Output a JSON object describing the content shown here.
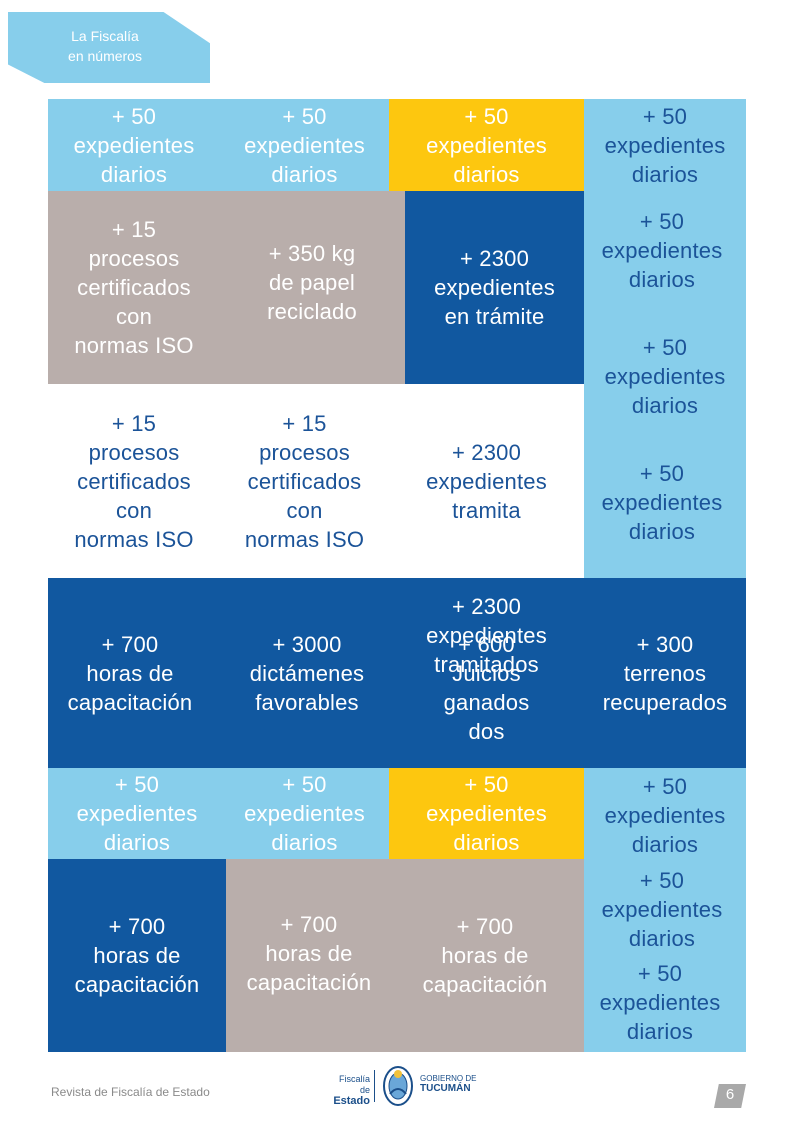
{
  "header": {
    "tag_line1": "La Fiscalía",
    "tag_line2": "en números"
  },
  "blocks": {
    "r1c1": [
      "+ 50",
      "expedientes",
      "diarios"
    ],
    "r1c2": [
      "+ 50",
      "expedientes",
      "diarios"
    ],
    "r1c3": [
      "+ 50",
      "expedientes",
      "diarios"
    ],
    "r1c4": [
      "+ 50",
      "expedientes",
      "diarios"
    ],
    "g1": [
      "+ 15",
      "procesos",
      "certificados",
      "con",
      "normas ISO"
    ],
    "g2": [
      "+ 350 kg",
      "de papel",
      "reciclado"
    ],
    "n1": [
      "+ 2300",
      "expedientes",
      "en trámite"
    ],
    "right1": [
      "+ 50",
      "expedientes",
      "diarios"
    ],
    "right2": [
      "+ 50",
      "expedientes",
      "diarios"
    ],
    "right3": [
      "+ 50",
      "expedientes",
      "diarios"
    ],
    "w1": [
      "+ 15",
      "procesos",
      "certificados",
      "con",
      "normas ISO"
    ],
    "w2": [
      "+ 15",
      "procesos",
      "certificados",
      "con",
      "normas ISO"
    ],
    "w3": [
      "+ 2300",
      "expedientes",
      "tramita"
    ],
    "b1": [
      "+ 700",
      "horas de",
      "capacitación"
    ],
    "b2": [
      "+ 3000",
      "dictámenes",
      "favorables"
    ],
    "b3a": [
      "+ 2300",
      "expedientes",
      "tramitados"
    ],
    "b3b": [
      "+ 600",
      "Juicios",
      "ganados",
      "dos"
    ],
    "b4": [
      "+ 300",
      "terrenos",
      "recuperados"
    ],
    "r5c1": [
      "+ 50",
      "expedientes",
      "diarios"
    ],
    "r5c2": [
      "+ 50",
      "expedientes",
      "diarios"
    ],
    "r5c3": [
      "+ 50",
      "expedientes",
      "diarios"
    ],
    "r5c4": [
      "+ 50",
      "expedientes",
      "diarios"
    ],
    "r6c1": [
      "+ 700",
      "horas de",
      "capacitación"
    ],
    "r6c2": [
      "+ 700",
      "horas de",
      "capacitación"
    ],
    "r6c3": [
      "+ 700",
      "horas de",
      "capacitación"
    ],
    "right6a": [
      "+ 50",
      "expedientes",
      "diarios"
    ],
    "right6b": [
      "+ 50",
      "expedientes",
      "diarios"
    ]
  },
  "footer": {
    "magazine": "Revista de Fiscalía de Estado",
    "logo_left_1": "Fiscalía de",
    "logo_left_2": "Estado",
    "logo_right_1": "GOBIERNO DE",
    "logo_right_2": "TUCUMÁN",
    "page_number": "6"
  }
}
